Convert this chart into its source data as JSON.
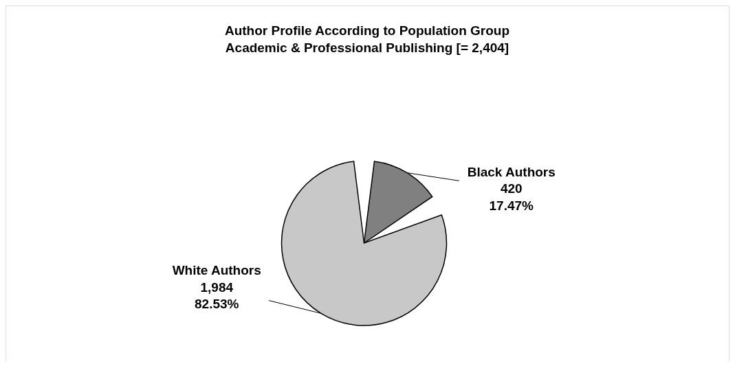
{
  "chart_data": {
    "type": "pie",
    "title": "Author Profile According to Population Group",
    "subtitle": "Academic & Professional Publishing [= 2,404]",
    "categories": [
      "Black Authors",
      "White Authors"
    ],
    "values": [
      420,
      1984
    ],
    "colors": [
      "#808080",
      "#c8c8c8"
    ],
    "value_labels": [
      "420\n17.47%",
      "1,984\n82.53%"
    ]
  }
}
